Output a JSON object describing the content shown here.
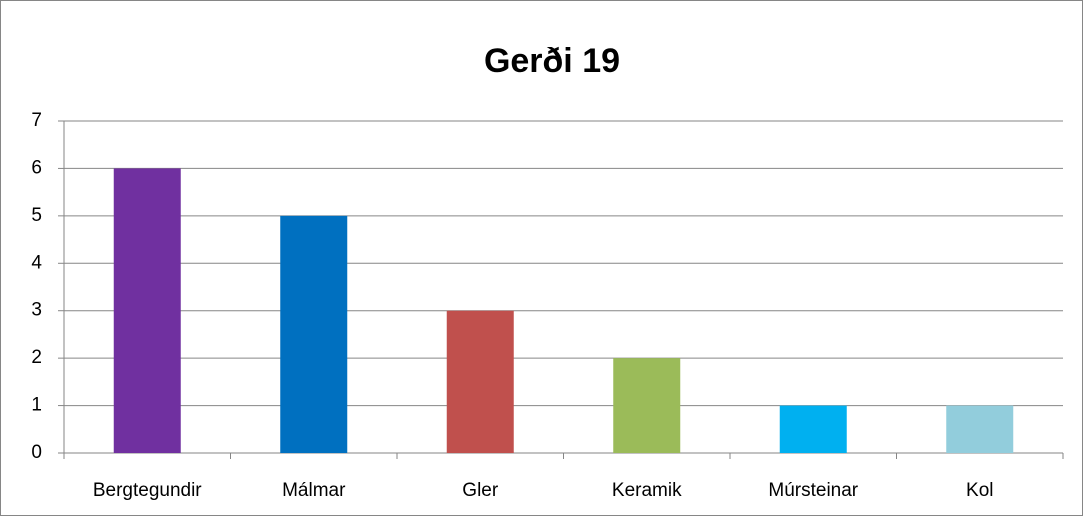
{
  "chart_data": {
    "type": "bar",
    "title": "Gerði 19",
    "categories": [
      "Bergtegundir",
      "Málmar",
      "Gler",
      "Keramik",
      "Múrsteinar",
      "Kol"
    ],
    "values": [
      6,
      5,
      3,
      2,
      1,
      1
    ],
    "colors": [
      "#7030a0",
      "#0070c0",
      "#c0504d",
      "#9bbb59",
      "#00b0f0",
      "#92cddc"
    ],
    "ylim": [
      0,
      7
    ],
    "yticks": [
      0,
      1,
      2,
      3,
      4,
      5,
      6,
      7
    ],
    "grid": true
  }
}
